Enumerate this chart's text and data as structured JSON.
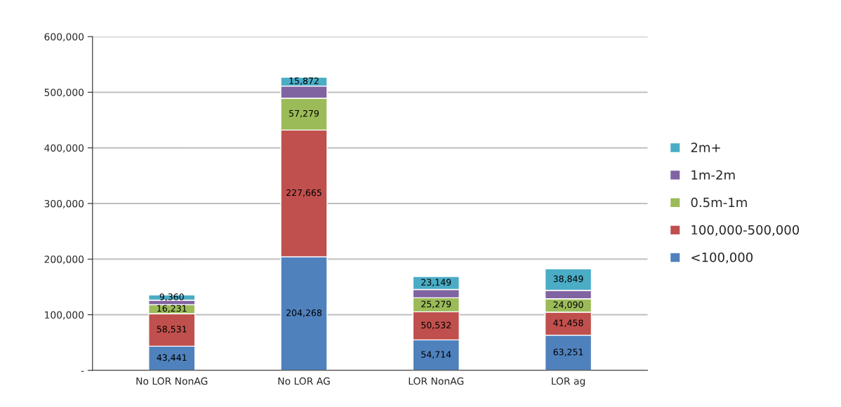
{
  "chart_data": {
    "type": "bar",
    "stacked": true,
    "categories": [
      "No LOR NonAG",
      "No LOR AG",
      "LOR NonAG",
      "LOR ag"
    ],
    "series": [
      {
        "name": "<100,000",
        "color": "#4f81bd",
        "values": [
          43441,
          204268,
          54714,
          63251
        ],
        "value_labels": [
          "43,441",
          "204,268",
          "54,714",
          "63,251"
        ]
      },
      {
        "name": "100,000-500,000",
        "color": "#c0504d",
        "values": [
          58531,
          227665,
          50532,
          41458
        ],
        "value_labels": [
          "58,531",
          "227,665",
          "50,532",
          "41,458"
        ]
      },
      {
        "name": "0.5m-1m",
        "color": "#9bbb59",
        "values": [
          16231,
          57279,
          25279,
          24090
        ],
        "value_labels": [
          "16,231",
          "57,279",
          "25,279",
          "24,090"
        ]
      },
      {
        "name": "1m-2m",
        "color": "#8064a2",
        "values": [
          8000,
          22000,
          15000,
          15000
        ],
        "value_labels": [
          null,
          null,
          null,
          null
        ]
      },
      {
        "name": "2m+",
        "color": "#4bacc6",
        "values": [
          9360,
          15872,
          23149,
          38849
        ],
        "value_labels": [
          "9,360",
          "15,872",
          "23,149",
          "38,849"
        ]
      }
    ],
    "ylim": [
      0,
      600000
    ],
    "yticks": [
      {
        "value": 0,
        "label": "-"
      },
      {
        "value": 100000,
        "label": "100,000"
      },
      {
        "value": 200000,
        "label": "200,000"
      },
      {
        "value": 300000,
        "label": "300,000"
      },
      {
        "value": 400000,
        "label": "400,000"
      },
      {
        "value": 500000,
        "label": "500,000"
      },
      {
        "value": 600000,
        "label": "600,000"
      }
    ],
    "grid": "y",
    "legend": "right"
  }
}
